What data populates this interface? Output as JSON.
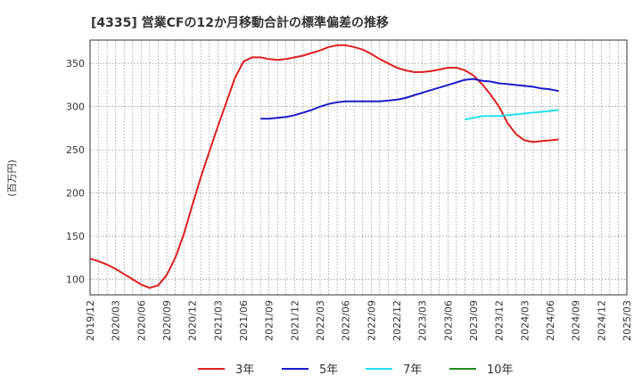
{
  "chart_data": {
    "type": "line",
    "title": "[4335]  営業CFの12か月移動合計の標準偏差の推移",
    "ylabel": "(百万円)",
    "xlabel": "",
    "x_ticks": [
      "2019/12",
      "2020/03",
      "2020/06",
      "2020/09",
      "2020/12",
      "2021/03",
      "2021/06",
      "2021/09",
      "2021/12",
      "2022/03",
      "2022/06",
      "2022/09",
      "2022/12",
      "2023/03",
      "2023/06",
      "2023/09",
      "2023/12",
      "2024/03",
      "2024/06",
      "2024/09",
      "2024/12",
      "2025/03"
    ],
    "y_ticks": [
      100,
      150,
      200,
      250,
      300,
      350
    ],
    "ylim": [
      82,
      377
    ],
    "xlim": [
      "2019/12",
      "2025/03"
    ],
    "grid": true,
    "legend_position": "bottom",
    "series": [
      {
        "name": "3年",
        "color": "#dd1f1f",
        "points": [
          [
            "2019/12",
            124
          ],
          [
            "2020/01",
            121
          ],
          [
            "2020/02",
            117
          ],
          [
            "2020/03",
            112
          ],
          [
            "2020/04",
            106
          ],
          [
            "2020/05",
            100
          ],
          [
            "2020/06",
            94
          ],
          [
            "2020/07",
            90
          ],
          [
            "2020/08",
            93
          ],
          [
            "2020/09",
            105
          ],
          [
            "2020/10",
            125
          ],
          [
            "2020/11",
            152
          ],
          [
            "2020/12",
            186
          ],
          [
            "2021/01",
            218
          ],
          [
            "2021/02",
            248
          ],
          [
            "2021/03",
            277
          ],
          [
            "2021/04",
            305
          ],
          [
            "2021/05",
            333
          ],
          [
            "2021/06",
            352
          ],
          [
            "2021/07",
            357
          ],
          [
            "2021/08",
            357
          ],
          [
            "2021/09",
            355
          ],
          [
            "2021/10",
            354
          ],
          [
            "2021/11",
            355
          ],
          [
            "2021/12",
            357
          ],
          [
            "2022/01",
            359
          ],
          [
            "2022/02",
            362
          ],
          [
            "2022/03",
            365
          ],
          [
            "2022/04",
            369
          ],
          [
            "2022/05",
            371
          ],
          [
            "2022/06",
            371
          ],
          [
            "2022/07",
            369
          ],
          [
            "2022/08",
            366
          ],
          [
            "2022/09",
            361
          ],
          [
            "2022/10",
            355
          ],
          [
            "2022/11",
            350
          ],
          [
            "2022/12",
            345
          ],
          [
            "2023/01",
            342
          ],
          [
            "2023/02",
            340
          ],
          [
            "2023/03",
            340
          ],
          [
            "2023/04",
            341
          ],
          [
            "2023/05",
            343
          ],
          [
            "2023/06",
            345
          ],
          [
            "2023/07",
            345
          ],
          [
            "2023/08",
            342
          ],
          [
            "2023/09",
            336
          ],
          [
            "2023/10",
            326
          ],
          [
            "2023/11",
            314
          ],
          [
            "2023/12",
            300
          ],
          [
            "2024/01",
            281
          ],
          [
            "2024/02",
            268
          ],
          [
            "2024/03",
            261
          ],
          [
            "2024/04",
            259
          ],
          [
            "2024/05",
            260
          ],
          [
            "2024/06",
            261
          ],
          [
            "2024/07",
            262
          ]
        ]
      },
      {
        "name": "5年",
        "color": "#1b1bcc",
        "points": [
          [
            "2021/08",
            286
          ],
          [
            "2021/09",
            286
          ],
          [
            "2021/10",
            287
          ],
          [
            "2021/11",
            288
          ],
          [
            "2021/12",
            290
          ],
          [
            "2022/01",
            293
          ],
          [
            "2022/02",
            296
          ],
          [
            "2022/03",
            300
          ],
          [
            "2022/04",
            303
          ],
          [
            "2022/05",
            305
          ],
          [
            "2022/06",
            306
          ],
          [
            "2022/07",
            306
          ],
          [
            "2022/08",
            306
          ],
          [
            "2022/09",
            306
          ],
          [
            "2022/10",
            306
          ],
          [
            "2022/11",
            307
          ],
          [
            "2022/12",
            308
          ],
          [
            "2023/01",
            310
          ],
          [
            "2023/02",
            313
          ],
          [
            "2023/03",
            316
          ],
          [
            "2023/04",
            319
          ],
          [
            "2023/05",
            322
          ],
          [
            "2023/06",
            325
          ],
          [
            "2023/07",
            328
          ],
          [
            "2023/08",
            331
          ],
          [
            "2023/09",
            332
          ],
          [
            "2023/10",
            330
          ],
          [
            "2023/11",
            329
          ],
          [
            "2023/12",
            327
          ],
          [
            "2024/01",
            326
          ],
          [
            "2024/02",
            325
          ],
          [
            "2024/03",
            324
          ],
          [
            "2024/04",
            323
          ],
          [
            "2024/05",
            321
          ],
          [
            "2024/06",
            320
          ],
          [
            "2024/07",
            318
          ]
        ]
      },
      {
        "name": "7年",
        "color": "#22e0ee",
        "points": [
          [
            "2023/08",
            285
          ],
          [
            "2023/09",
            287
          ],
          [
            "2023/10",
            289
          ],
          [
            "2023/11",
            289
          ],
          [
            "2023/12",
            289
          ],
          [
            "2024/01",
            290
          ],
          [
            "2024/02",
            291
          ],
          [
            "2024/03",
            292
          ],
          [
            "2024/04",
            293
          ],
          [
            "2024/05",
            294
          ],
          [
            "2024/06",
            295
          ],
          [
            "2024/07",
            296
          ]
        ]
      },
      {
        "name": "10年",
        "color": "#1e8c1e",
        "points": []
      }
    ]
  }
}
